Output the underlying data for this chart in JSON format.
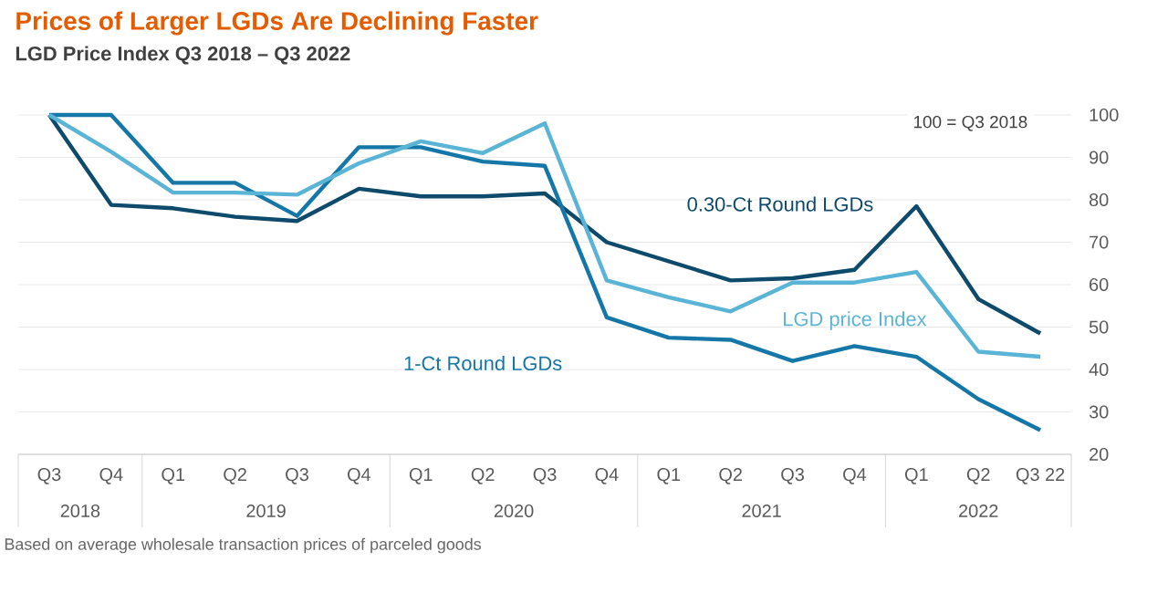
{
  "chart_data": {
    "type": "line",
    "title": "Prices of Larger LGDs Are Declining Faster",
    "subtitle": "LGD Price Index Q3 2018 – Q3 2022",
    "categories": [
      "Q3",
      "Q4",
      "Q1",
      "Q2",
      "Q3",
      "Q4",
      "Q1",
      "Q2",
      "Q3",
      "Q4",
      "Q1",
      "Q2",
      "Q3",
      "Q4",
      "Q1",
      "Q2",
      "Q3 22"
    ],
    "series": [
      {
        "name": "0.30-Ct Round LGDs",
        "color": "#0d4a6b",
        "values": [
          100,
          78.8,
          78,
          76,
          75,
          82.6,
          80.8,
          80.8,
          81.5,
          70,
          65.5,
          61,
          61.5,
          63.5,
          78.5,
          56.6,
          48.5
        ]
      },
      {
        "name": "1-Ct Round LGDs",
        "color": "#1577a8",
        "values": [
          100,
          100,
          84,
          84,
          76.2,
          92.4,
          92.4,
          89,
          88,
          52.3,
          47.5,
          47,
          42,
          45.5,
          43,
          33,
          25.7
        ]
      },
      {
        "name": "LGD price Index",
        "color": "#5ab4d6",
        "values": [
          100,
          91.3,
          81.7,
          81.7,
          81.2,
          88.6,
          93.8,
          91,
          98,
          61,
          57,
          53.7,
          60.5,
          60.5,
          63,
          44.2,
          43
        ]
      }
    ],
    "ylim": [
      20,
      100
    ],
    "yticks": [
      20,
      30,
      40,
      50,
      60,
      70,
      80,
      90,
      100
    ],
    "grid": "y",
    "legend": false,
    "marker": "none",
    "line_style": "solid",
    "annotations": [
      "100 = Q3 2018",
      "2018",
      "2019",
      "2020",
      "2021",
      "2022",
      "Based on average wholesale transaction prices of parceled goods"
    ]
  }
}
